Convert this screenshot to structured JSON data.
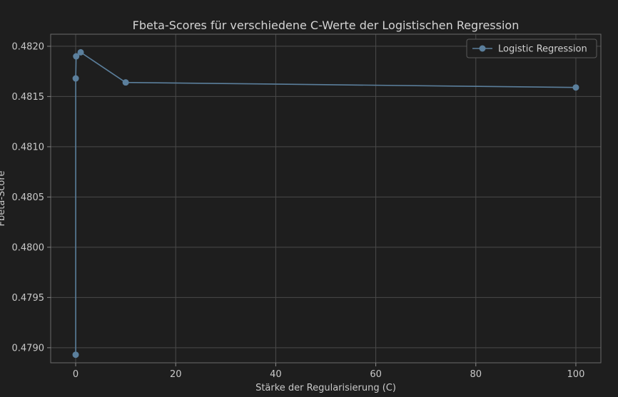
{
  "chart_data": {
    "type": "line",
    "title": "Fbeta-Scores für verschiedene C-Werte der Logistischen Regression",
    "xlabel": "Stärke der Regularisierung (C)",
    "ylabel": "Fbeta-Score",
    "xlim": [
      -5,
      105
    ],
    "ylim": [
      0.47885,
      0.48212
    ],
    "x_ticks": [
      0,
      20,
      40,
      60,
      80,
      100
    ],
    "y_ticks": [
      0.479,
      0.4795,
      0.48,
      0.4805,
      0.481,
      0.4815,
      0.482
    ],
    "x_tick_labels": [
      "0",
      "20",
      "40",
      "60",
      "80",
      "100"
    ],
    "y_tick_labels": [
      "0.4790",
      "0.4795",
      "0.4800",
      "0.4805",
      "0.4810",
      "0.4815",
      "0.4820"
    ],
    "grid": true,
    "legend_position": "top-right",
    "series": [
      {
        "name": "Logistic Regression",
        "color": "#5b7f9c",
        "marker": "circle",
        "x": [
          0.001,
          0.01,
          0.1,
          1,
          10,
          100
        ],
        "y": [
          0.47893,
          0.48168,
          0.4819,
          0.48194,
          0.48164,
          0.48159
        ]
      }
    ]
  }
}
